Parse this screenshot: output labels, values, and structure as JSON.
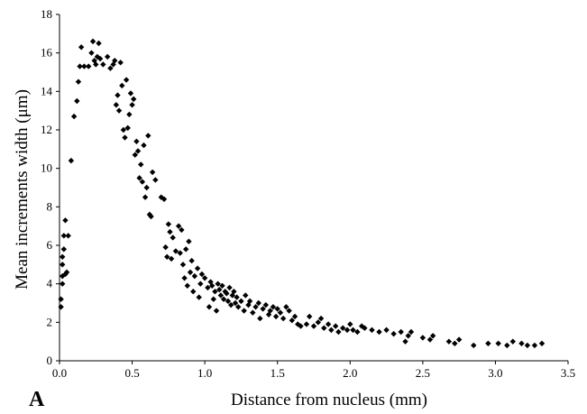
{
  "chart_data": {
    "type": "scatter",
    "panel_label": "A",
    "xlabel": "Distance from nucleus (mm)",
    "ylabel": "Mean increments width (μm)",
    "xlim": [
      0,
      3.5
    ],
    "ylim": [
      0,
      18
    ],
    "xticks": [
      "0.0",
      "0.5",
      "1.0",
      "1.5",
      "2.0",
      "2.5",
      "3.0",
      "3.5"
    ],
    "yticks": [
      "0",
      "2",
      "4",
      "6",
      "8",
      "10",
      "12",
      "14",
      "16",
      "18"
    ],
    "grid": false,
    "marker": "diamond",
    "marker_color": "#000000",
    "series": [
      {
        "points": [
          [
            0.01,
            2.8
          ],
          [
            0.01,
            3.2
          ],
          [
            0.02,
            4.0
          ],
          [
            0.02,
            4.4
          ],
          [
            0.02,
            5.0
          ],
          [
            0.02,
            5.4
          ],
          [
            0.03,
            5.8
          ],
          [
            0.03,
            6.5
          ],
          [
            0.04,
            4.5
          ],
          [
            0.04,
            7.3
          ],
          [
            0.05,
            4.6
          ],
          [
            0.06,
            6.5
          ],
          [
            0.08,
            10.4
          ],
          [
            0.1,
            12.7
          ],
          [
            0.12,
            13.5
          ],
          [
            0.13,
            14.5
          ],
          [
            0.14,
            15.3
          ],
          [
            0.15,
            16.3
          ],
          [
            0.17,
            15.3
          ],
          [
            0.2,
            15.3
          ],
          [
            0.22,
            16.0
          ],
          [
            0.23,
            16.6
          ],
          [
            0.24,
            15.6
          ],
          [
            0.25,
            15.4
          ],
          [
            0.26,
            15.8
          ],
          [
            0.27,
            16.5
          ],
          [
            0.28,
            15.7
          ],
          [
            0.3,
            15.4
          ],
          [
            0.33,
            15.8
          ],
          [
            0.35,
            15.2
          ],
          [
            0.37,
            15.4
          ],
          [
            0.38,
            15.6
          ],
          [
            0.39,
            13.3
          ],
          [
            0.4,
            13.8
          ],
          [
            0.41,
            13.0
          ],
          [
            0.42,
            15.5
          ],
          [
            0.43,
            14.3
          ],
          [
            0.44,
            12.0
          ],
          [
            0.45,
            11.6
          ],
          [
            0.46,
            14.6
          ],
          [
            0.47,
            12.1
          ],
          [
            0.48,
            12.8
          ],
          [
            0.49,
            13.9
          ],
          [
            0.5,
            13.3
          ],
          [
            0.51,
            13.6
          ],
          [
            0.52,
            10.7
          ],
          [
            0.53,
            11.4
          ],
          [
            0.54,
            10.9
          ],
          [
            0.55,
            9.5
          ],
          [
            0.56,
            10.2
          ],
          [
            0.57,
            9.3
          ],
          [
            0.58,
            11.2
          ],
          [
            0.59,
            8.5
          ],
          [
            0.6,
            9.0
          ],
          [
            0.61,
            11.7
          ],
          [
            0.62,
            7.6
          ],
          [
            0.63,
            7.5
          ],
          [
            0.64,
            9.8
          ],
          [
            0.66,
            9.4
          ],
          [
            0.7,
            8.5
          ],
          [
            0.72,
            8.4
          ],
          [
            0.73,
            5.9
          ],
          [
            0.74,
            5.4
          ],
          [
            0.75,
            7.1
          ],
          [
            0.76,
            6.7
          ],
          [
            0.77,
            5.3
          ],
          [
            0.78,
            6.4
          ],
          [
            0.8,
            5.7
          ],
          [
            0.82,
            7.0
          ],
          [
            0.83,
            5.6
          ],
          [
            0.84,
            6.8
          ],
          [
            0.85,
            5.0
          ],
          [
            0.86,
            4.3
          ],
          [
            0.87,
            5.8
          ],
          [
            0.88,
            3.9
          ],
          [
            0.89,
            6.2
          ],
          [
            0.9,
            4.6
          ],
          [
            0.91,
            5.2
          ],
          [
            0.92,
            3.6
          ],
          [
            0.93,
            4.4
          ],
          [
            0.95,
            4.8
          ],
          [
            0.96,
            3.3
          ],
          [
            0.97,
            4.0
          ],
          [
            0.98,
            4.5
          ],
          [
            1.0,
            4.3
          ],
          [
            1.02,
            3.8
          ],
          [
            1.03,
            2.8
          ],
          [
            1.04,
            4.1
          ],
          [
            1.05,
            3.9
          ],
          [
            1.06,
            3.2
          ],
          [
            1.07,
            3.6
          ],
          [
            1.08,
            2.6
          ],
          [
            1.09,
            4.0
          ],
          [
            1.1,
            3.7
          ],
          [
            1.11,
            3.4
          ],
          [
            1.12,
            3.9
          ],
          [
            1.13,
            3.2
          ],
          [
            1.14,
            3.6
          ],
          [
            1.15,
            3.5
          ],
          [
            1.16,
            3.1
          ],
          [
            1.17,
            3.8
          ],
          [
            1.18,
            2.9
          ],
          [
            1.19,
            3.4
          ],
          [
            1.2,
            3.6
          ],
          [
            1.21,
            3.0
          ],
          [
            1.22,
            3.3
          ],
          [
            1.23,
            2.8
          ],
          [
            1.25,
            3.1
          ],
          [
            1.27,
            2.6
          ],
          [
            1.28,
            3.4
          ],
          [
            1.3,
            2.9
          ],
          [
            1.31,
            3.1
          ],
          [
            1.33,
            2.5
          ],
          [
            1.35,
            2.8
          ],
          [
            1.37,
            3.0
          ],
          [
            1.38,
            2.2
          ],
          [
            1.4,
            2.7
          ],
          [
            1.42,
            2.9
          ],
          [
            1.44,
            2.4
          ],
          [
            1.45,
            2.6
          ],
          [
            1.47,
            2.8
          ],
          [
            1.49,
            2.3
          ],
          [
            1.5,
            2.7
          ],
          [
            1.52,
            2.5
          ],
          [
            1.54,
            2.2
          ],
          [
            1.56,
            2.8
          ],
          [
            1.58,
            2.6
          ],
          [
            1.6,
            2.1
          ],
          [
            1.62,
            2.3
          ],
          [
            1.64,
            1.9
          ],
          [
            1.66,
            1.8
          ],
          [
            1.7,
            1.9
          ],
          [
            1.72,
            2.3
          ],
          [
            1.75,
            1.8
          ],
          [
            1.78,
            2.0
          ],
          [
            1.8,
            2.2
          ],
          [
            1.82,
            1.7
          ],
          [
            1.85,
            1.9
          ],
          [
            1.87,
            1.6
          ],
          [
            1.9,
            1.8
          ],
          [
            1.92,
            1.5
          ],
          [
            1.95,
            1.7
          ],
          [
            1.98,
            1.6
          ],
          [
            2.0,
            1.9
          ],
          [
            2.02,
            1.6
          ],
          [
            2.05,
            1.5
          ],
          [
            2.08,
            1.8
          ],
          [
            2.1,
            1.7
          ],
          [
            2.15,
            1.6
          ],
          [
            2.2,
            1.5
          ],
          [
            2.25,
            1.6
          ],
          [
            2.3,
            1.4
          ],
          [
            2.35,
            1.5
          ],
          [
            2.38,
            1.0
          ],
          [
            2.4,
            1.3
          ],
          [
            2.42,
            1.5
          ],
          [
            2.5,
            1.2
          ],
          [
            2.55,
            1.1
          ],
          [
            2.57,
            1.3
          ],
          [
            2.68,
            1.0
          ],
          [
            2.72,
            0.9
          ],
          [
            2.75,
            1.1
          ],
          [
            2.85,
            0.8
          ],
          [
            2.95,
            0.9
          ],
          [
            3.02,
            0.9
          ],
          [
            3.08,
            0.8
          ],
          [
            3.12,
            1.0
          ],
          [
            3.18,
            0.9
          ],
          [
            3.22,
            0.8
          ],
          [
            3.27,
            0.8
          ],
          [
            3.32,
            0.9
          ]
        ]
      }
    ]
  }
}
